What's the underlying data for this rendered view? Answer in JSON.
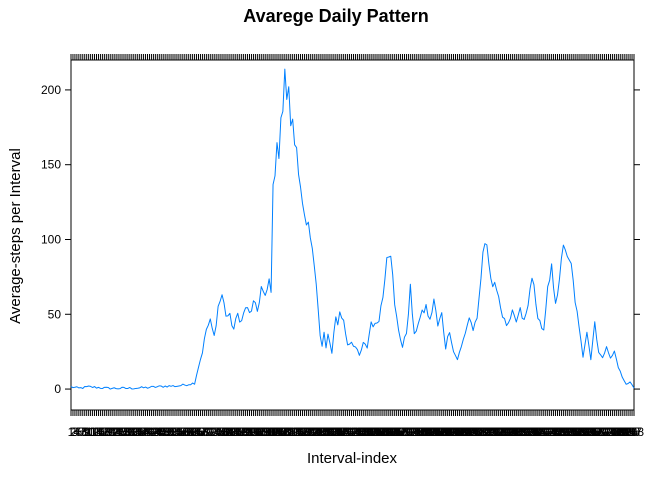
{
  "chart_data": {
    "type": "line",
    "title": "Avarege Daily Pattern",
    "xlabel": "Interval-index",
    "ylabel": "Average-steps per Interval",
    "xlim": [
      1,
      288
    ],
    "ylim": [
      -14,
      220
    ],
    "y_ticks": [
      0,
      50,
      100,
      150,
      200
    ],
    "y_tick_labels": [
      "0",
      "50",
      "100",
      "150",
      "200"
    ],
    "grid": false,
    "legend": "none",
    "series_color": "#0080ff",
    "key_points": [
      [
        1,
        1.5
      ],
      [
        5,
        0.5
      ],
      [
        10,
        1.5
      ],
      [
        20,
        0.5
      ],
      [
        30,
        0.5
      ],
      [
        40,
        1
      ],
      [
        50,
        2
      ],
      [
        55,
        2
      ],
      [
        60,
        3
      ],
      [
        64,
        4
      ],
      [
        66,
        15
      ],
      [
        68,
        25
      ],
      [
        70,
        40
      ],
      [
        72,
        45
      ],
      [
        74,
        35
      ],
      [
        76,
        55
      ],
      [
        78,
        63
      ],
      [
        80,
        50
      ],
      [
        82,
        48
      ],
      [
        84,
        40
      ],
      [
        86,
        50
      ],
      [
        88,
        45
      ],
      [
        90,
        55
      ],
      [
        92,
        50
      ],
      [
        94,
        57
      ],
      [
        96,
        52
      ],
      [
        98,
        68
      ],
      [
        100,
        60
      ],
      [
        102,
        72
      ],
      [
        103,
        68
      ],
      [
        104,
        130
      ],
      [
        105,
        150
      ],
      [
        106,
        170
      ],
      [
        107,
        155
      ],
      [
        108,
        175
      ],
      [
        110,
        205
      ],
      [
        112,
        195
      ],
      [
        113,
        178
      ],
      [
        114,
        182
      ],
      [
        116,
        165
      ],
      [
        117,
        140
      ],
      [
        119,
        120
      ],
      [
        120,
        110
      ],
      [
        122,
        107
      ],
      [
        124,
        100
      ],
      [
        126,
        70
      ],
      [
        128,
        35
      ],
      [
        129,
        28
      ],
      [
        130,
        38
      ],
      [
        131,
        27
      ],
      [
        132,
        35
      ],
      [
        134,
        25
      ],
      [
        136,
        50
      ],
      [
        137,
        42
      ],
      [
        138,
        52
      ],
      [
        140,
        45
      ],
      [
        142,
        30
      ],
      [
        144,
        32
      ],
      [
        146,
        28
      ],
      [
        148,
        22
      ],
      [
        150,
        30
      ],
      [
        152,
        28
      ],
      [
        154,
        45
      ],
      [
        156,
        42
      ],
      [
        158,
        48
      ],
      [
        160,
        62
      ],
      [
        162,
        92
      ],
      [
        164,
        93
      ],
      [
        166,
        55
      ],
      [
        168,
        40
      ],
      [
        170,
        28
      ],
      [
        172,
        38
      ],
      [
        174,
        67
      ],
      [
        176,
        35
      ],
      [
        178,
        45
      ],
      [
        180,
        50
      ],
      [
        182,
        55
      ],
      [
        184,
        45
      ],
      [
        186,
        60
      ],
      [
        188,
        42
      ],
      [
        190,
        50
      ],
      [
        192,
        28
      ],
      [
        194,
        40
      ],
      [
        196,
        25
      ],
      [
        198,
        20
      ],
      [
        200,
        28
      ],
      [
        202,
        38
      ],
      [
        204,
        48
      ],
      [
        206,
        40
      ],
      [
        208,
        45
      ],
      [
        210,
        75
      ],
      [
        212,
        100
      ],
      [
        213,
        102
      ],
      [
        214,
        85
      ],
      [
        216,
        65
      ],
      [
        218,
        70
      ],
      [
        220,
        55
      ],
      [
        222,
        45
      ],
      [
        224,
        42
      ],
      [
        226,
        50
      ],
      [
        228,
        45
      ],
      [
        230,
        52
      ],
      [
        232,
        45
      ],
      [
        234,
        55
      ],
      [
        236,
        78
      ],
      [
        238,
        55
      ],
      [
        240,
        45
      ],
      [
        242,
        38
      ],
      [
        244,
        65
      ],
      [
        246,
        80
      ],
      [
        248,
        60
      ],
      [
        250,
        70
      ],
      [
        252,
        99
      ],
      [
        253,
        95
      ],
      [
        254,
        85
      ],
      [
        256,
        82
      ],
      [
        258,
        60
      ],
      [
        260,
        40
      ],
      [
        262,
        22
      ],
      [
        264,
        40
      ],
      [
        266,
        20
      ],
      [
        268,
        45
      ],
      [
        270,
        25
      ],
      [
        272,
        20
      ],
      [
        274,
        30
      ],
      [
        276,
        20
      ],
      [
        278,
        25
      ],
      [
        280,
        15
      ],
      [
        282,
        8
      ],
      [
        284,
        3
      ],
      [
        286,
        5
      ],
      [
        288,
        0.5
      ]
    ]
  }
}
